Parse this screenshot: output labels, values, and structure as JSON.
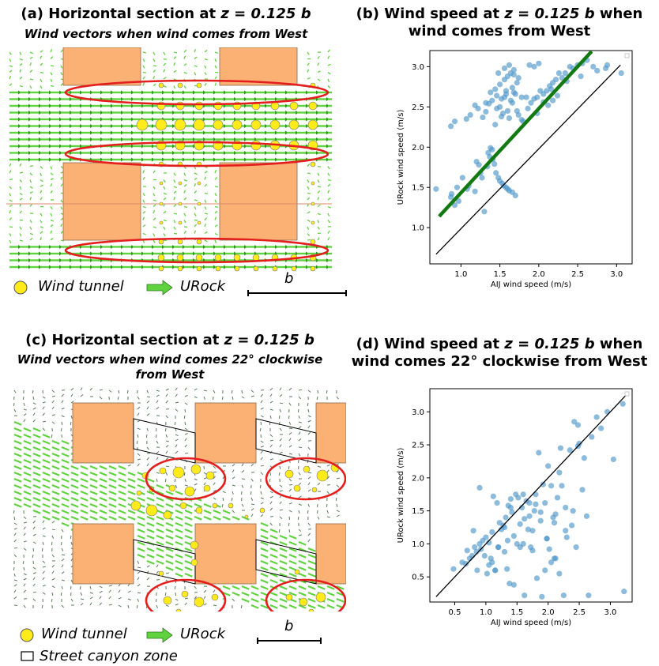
{
  "panel_a": {
    "title_prefix": "(a) Horizontal section at ",
    "title_z": "z = 0.125 b",
    "subtitle": "Wind vectors when wind comes from West"
  },
  "panel_b": {
    "title_line1_prefix": "(b) Wind speed at ",
    "title_z": "z = 0.125 b",
    "title_line1_suffix": " when",
    "title_line2": "wind comes from West"
  },
  "panel_c": {
    "title_prefix": "(c) Horizontal section at ",
    "title_z": "z = 0.125 b",
    "subtitle_line1": "Wind vectors when wind comes 22° clockwise",
    "subtitle_line2": "from West"
  },
  "panel_d": {
    "title_line1_prefix": "(d) Wind speed at ",
    "title_z": "z = 0.125 b",
    "title_line1_suffix": " when",
    "title_line2": "wind comes 22° clockwise from West"
  },
  "legend": {
    "wind_tunnel": "Wind tunnel",
    "urock": "URock",
    "scale": "b",
    "street_canyon": "Street canyon zone"
  },
  "colors": {
    "building": "#fbb174",
    "vector": "#5fd33f",
    "wind_tunnel_marker": "#ffeb1a",
    "highlight": "#e41d1d",
    "scatter": "#4f97c9",
    "fit_line": "#137a13"
  },
  "chart_data": [
    {
      "type": "scatter",
      "xlabel": "AIJ  wind speed (m/s)",
      "ylabel": "URock  wind speed (m/s)",
      "xlim": [
        0.6,
        3.2
      ],
      "ylim": [
        0.55,
        3.2
      ],
      "xticks": [
        "1.0",
        "1.5",
        "2.0",
        "2.5",
        "3.0"
      ],
      "yticks": [
        "1.0",
        "1.5",
        "2.0",
        "2.5",
        "3.0"
      ],
      "reference_line": [
        [
          0.68,
          0.67
        ],
        [
          3.05,
          3.02
        ]
      ],
      "fit_line": [
        [
          0.72,
          1.14
        ],
        [
          2.68,
          3.19
        ]
      ],
      "series": [
        {
          "x": [
            0.68,
            0.88,
            0.87,
            0.92,
            0.95,
            0.97,
            1.02,
            1.08,
            1.1,
            1.18,
            1.2,
            1.23,
            1.25,
            1.27,
            1.3,
            1.34,
            1.35,
            1.37,
            1.38,
            1.4,
            1.41,
            1.43,
            1.45,
            1.48,
            1.5,
            1.53,
            1.55,
            1.58,
            1.6,
            1.62,
            1.66,
            1.7,
            0.87,
            0.92,
            1.07,
            1.12,
            1.18,
            1.22,
            1.28,
            1.32,
            1.36,
            1.4,
            1.44,
            1.46,
            1.5,
            1.52,
            1.54,
            1.56,
            1.58,
            1.6,
            1.62,
            1.64,
            1.66,
            1.68,
            1.72,
            1.74,
            1.78,
            1.8,
            1.84,
            1.86,
            1.9,
            1.94,
            1.98,
            2.02,
            2.06,
            2.1,
            2.14,
            2.18,
            2.22,
            2.26,
            2.3,
            2.34,
            2.4,
            2.44,
            2.5,
            2.56,
            2.62,
            2.7,
            2.75,
            2.88,
            3.06,
            1.32,
            1.38,
            1.44,
            1.5,
            1.56,
            1.6,
            1.64,
            1.68,
            1.72,
            1.56,
            1.62,
            1.68,
            1.74,
            1.88,
            1.94,
            2.0,
            1.46,
            1.52,
            1.58,
            1.66,
            1.7,
            1.78,
            2.12,
            2.18,
            2.24,
            2.36,
            2.54,
            2.86,
            1.48,
            1.98,
            2.06,
            2.16
          ],
          "y": [
            1.48,
            1.42,
            1.38,
            1.28,
            1.5,
            1.33,
            1.62,
            1.48,
            1.52,
            1.45,
            1.82,
            1.78,
            1.68,
            1.62,
            1.2,
            1.76,
            1.93,
            1.88,
            1.99,
            1.97,
            1.85,
            1.79,
            1.68,
            1.62,
            1.58,
            1.55,
            1.52,
            1.5,
            1.48,
            1.46,
            1.44,
            1.4,
            2.26,
            2.32,
            2.35,
            2.4,
            2.52,
            2.48,
            2.37,
            2.44,
            2.54,
            2.58,
            2.28,
            2.48,
            2.5,
            2.38,
            2.42,
            2.62,
            2.66,
            2.45,
            2.36,
            2.58,
            2.55,
            2.68,
            2.45,
            2.4,
            2.34,
            2.32,
            2.62,
            2.48,
            2.55,
            2.6,
            2.42,
            2.7,
            2.66,
            2.7,
            2.76,
            2.8,
            2.84,
            2.92,
            2.86,
            2.92,
            3.0,
            2.98,
            3.02,
            3.04,
            3.08,
            3.0,
            2.95,
            3.02,
            2.92,
            2.55,
            2.68,
            2.72,
            2.78,
            2.84,
            2.88,
            2.92,
            2.96,
            2.8,
            2.98,
            3.02,
            2.9,
            2.86,
            3.02,
            3.0,
            3.04,
            2.64,
            2.6,
            2.7,
            2.74,
            2.66,
            2.62,
            2.52,
            2.58,
            2.64,
            2.82,
            2.88,
            2.98,
            2.92,
            2.62,
            2.56,
            2.72
          ]
        }
      ]
    },
    {
      "type": "scatter",
      "xlabel": "AIJ  wind speed (m/s)",
      "ylabel": "URock  wind speed (m/s)",
      "xlim": [
        0.1,
        3.35
      ],
      "ylim": [
        0.12,
        3.35
      ],
      "xticks": [
        "0.5",
        "1.0",
        "1.5",
        "2.0",
        "2.5",
        "3.0"
      ],
      "yticks": [
        "0.5",
        "1.0",
        "1.5",
        "2.0",
        "2.5",
        "3.0"
      ],
      "reference_line": [
        [
          0.2,
          0.2
        ],
        [
          3.25,
          3.25
        ]
      ],
      "series": [
        {
          "x": [
            0.48,
            0.62,
            0.68,
            0.7,
            0.74,
            0.78,
            0.8,
            0.82,
            0.85,
            0.86,
            0.9,
            0.92,
            0.95,
            0.98,
            1.0,
            1.02,
            1.05,
            1.08,
            1.1,
            1.12,
            1.15,
            1.18,
            1.2,
            1.22,
            1.25,
            1.28,
            1.3,
            1.32,
            1.34,
            1.36,
            1.38,
            1.4,
            1.42,
            1.45,
            1.48,
            1.5,
            1.52,
            1.55,
            1.58,
            1.6,
            1.62,
            1.65,
            1.68,
            1.7,
            1.72,
            1.75,
            1.78,
            1.8,
            1.82,
            1.85,
            1.88,
            1.9,
            1.92,
            1.95,
            1.98,
            2.0,
            2.02,
            2.05,
            2.08,
            2.1,
            2.12,
            2.15,
            2.18,
            2.2,
            2.22,
            2.25,
            2.3,
            2.35,
            2.4,
            2.42,
            2.45,
            2.48,
            2.5,
            2.55,
            2.58,
            2.62,
            2.65,
            2.7,
            2.78,
            2.85,
            2.95,
            3.05,
            3.2,
            3.22,
            1.05,
            1.1,
            1.2,
            1.35,
            1.45,
            1.55,
            1.62,
            1.7,
            1.8,
            1.88,
            1.95,
            2.05,
            2.12,
            2.18,
            2.28,
            2.38,
            2.48,
            0.9,
            1.15,
            1.3,
            1.4,
            1.6,
            1.75,
            1.98,
            2.1,
            2.28
          ],
          "y": [
            0.62,
            0.72,
            0.7,
            0.9,
            0.78,
            0.82,
            1.2,
            0.95,
            0.88,
            0.6,
            1.0,
            0.92,
            1.05,
            0.82,
            1.1,
            0.55,
            1.02,
            0.78,
            1.18,
            1.72,
            0.6,
            1.62,
            0.95,
            1.32,
            1.22,
            1.28,
            0.88,
            1.4,
            0.62,
            1.58,
            0.4,
            1.68,
            1.48,
            0.38,
            1.75,
            1.0,
            1.7,
            0.95,
            1.55,
            1.0,
            0.22,
            1.65,
            1.22,
            1.42,
            0.95,
            1.2,
            1.5,
            1.6,
            0.48,
            2.38,
            1.35,
            0.2,
            1.9,
            1.62,
            1.08,
            2.18,
            0.92,
            1.88,
            1.4,
            1.32,
            0.78,
            1.7,
            0.55,
            2.45,
            1.88,
            0.22,
            1.1,
            2.42,
            1.5,
            2.85,
            0.95,
            2.8,
            2.52,
            1.82,
            2.3,
            1.42,
            0.22,
            2.62,
            2.92,
            2.75,
            3.0,
            2.28,
            3.12,
            0.28,
            0.68,
            0.72,
            0.95,
            1.05,
            1.12,
            1.3,
            1.38,
            1.62,
            1.75,
            1.48,
            0.6,
            0.72,
            1.45,
            2.08,
            1.55,
            1.28,
            2.48,
            1.85,
            0.6,
            1.25,
            1.55,
            1.75,
            0.9,
            1.08,
            0.78,
            1.2
          ]
        }
      ]
    }
  ]
}
